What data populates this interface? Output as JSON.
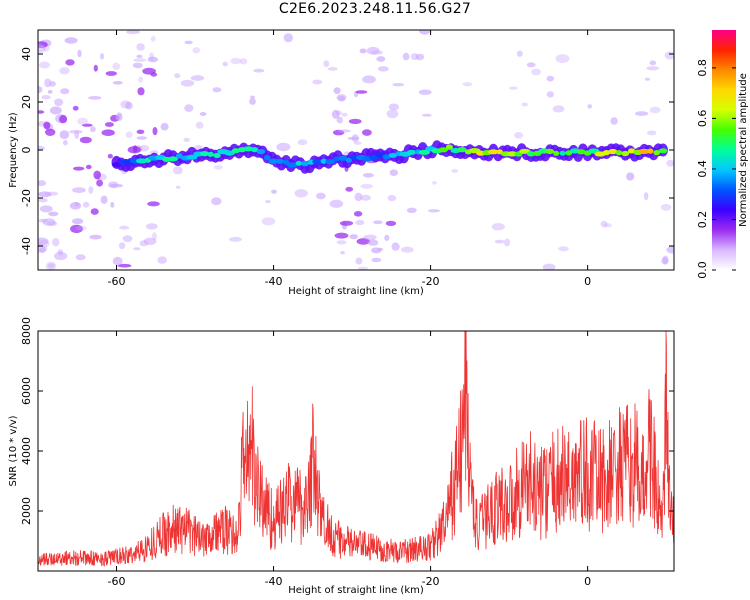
{
  "title": "C2E6.2023.248.11.56.G27",
  "colors": {
    "snr_line": "#ee3333",
    "blob": "#9b2cf0",
    "axis": "#000000",
    "colormap": [
      "#ffffff",
      "#d9b8ff",
      "#9b2cf0",
      "#3a00ff",
      "#0055ff",
      "#00c8ff",
      "#00ff99",
      "#44ff00",
      "#d6ff00",
      "#ffd800",
      "#ff8800",
      "#ff2200",
      "#ff0088"
    ]
  },
  "chart_data": [
    {
      "type": "heatmap",
      "title": "",
      "xlabel": "Height of straight line (km)",
      "ylabel": "Frequency (Hz)",
      "xlim": [
        -70,
        11
      ],
      "ylim": [
        -50,
        50
      ],
      "x_ticks": [
        -60,
        -40,
        -20,
        0
      ],
      "y_ticks": [
        -40,
        -20,
        0,
        20,
        40
      ],
      "colorbar": {
        "label": "Normalized spectral amplitude",
        "range": [
          0.0,
          0.95
        ],
        "ticks": [
          0.0,
          0.2,
          0.4,
          0.6,
          0.8
        ]
      },
      "ridge": {
        "x": [
          -60,
          -56,
          -52,
          -48,
          -44,
          -42,
          -40,
          -36,
          -32,
          -28,
          -24,
          -20,
          -18,
          -16,
          -12,
          -8,
          -4,
          0,
          4,
          8,
          10
        ],
        "frequency": [
          -6,
          -4,
          -3,
          -2,
          0,
          0,
          -5,
          -6,
          -4,
          -3,
          -2,
          0,
          1,
          0,
          -1,
          -1,
          -1,
          -1,
          -1,
          -1,
          -1
        ],
        "amplitude": [
          0.3,
          0.45,
          0.5,
          0.5,
          0.55,
          0.45,
          0.4,
          0.45,
          0.35,
          0.35,
          0.4,
          0.5,
          0.6,
          0.55,
          0.75,
          0.6,
          0.55,
          0.6,
          0.7,
          0.8,
          0.5
        ]
      },
      "noise_regions_km": [
        [
          -70,
          -55
        ],
        [
          -32,
          -24
        ]
      ]
    },
    {
      "type": "line",
      "title": "",
      "xlabel": "Height of straight line (km)",
      "ylabel": "SNR (10 * v/v)",
      "xlim": [
        -70,
        11
      ],
      "ylim": [
        0,
        8000
      ],
      "x_ticks": [
        -60,
        -40,
        -20,
        0
      ],
      "y_ticks": [
        2000,
        4000,
        6000,
        8000
      ],
      "series": [
        {
          "color": "#ee3333",
          "x": [
            -70,
            -66,
            -62,
            -58,
            -56,
            -54,
            -52,
            -50,
            -48,
            -46,
            -44.5,
            -44,
            -43,
            -42,
            -40,
            -38,
            -36,
            -35,
            -34,
            -32,
            -30,
            -28,
            -26,
            -24,
            -22,
            -20,
            -18,
            -16,
            -15.5,
            -15,
            -14,
            -12,
            -10,
            -8,
            -6,
            -4,
            -2,
            0,
            2,
            4,
            6,
            7,
            8,
            9,
            9.5,
            10,
            10.5,
            11
          ],
          "y": [
            400,
            500,
            450,
            600,
            900,
            1400,
            1600,
            1300,
            1400,
            1500,
            1300,
            3800,
            4800,
            3000,
            1800,
            2600,
            2400,
            4000,
            2000,
            1200,
            1000,
            900,
            800,
            700,
            800,
            900,
            1800,
            4500,
            7800,
            3200,
            1500,
            2400,
            2500,
            3400,
            2900,
            3300,
            3500,
            3600,
            3300,
            3800,
            3900,
            3200,
            4800,
            2500,
            1400,
            6200,
            2000,
            1800
          ]
        }
      ]
    }
  ]
}
